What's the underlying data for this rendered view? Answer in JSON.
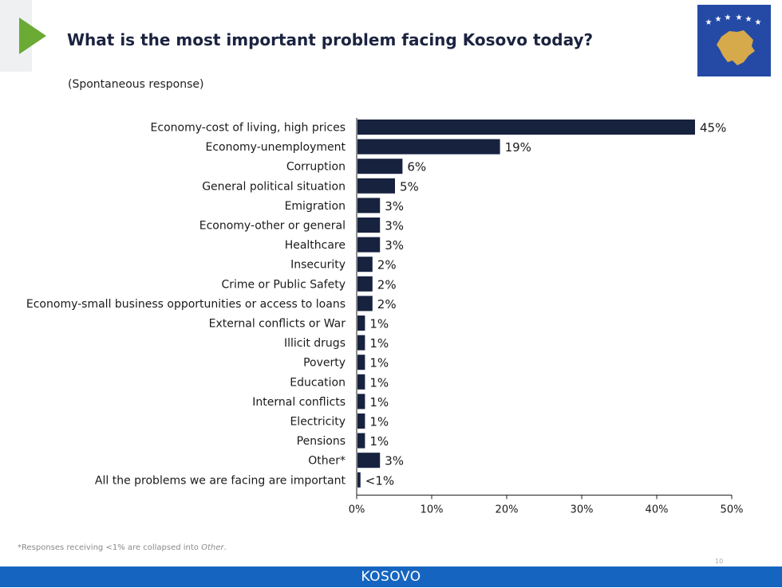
{
  "header": {
    "title": "What is the most important problem facing Kosovo today?",
    "subtitle": "(Spontaneous response)"
  },
  "colors": {
    "bar": "#17223f",
    "accent_green": "#6aaa35",
    "footer": "#1565c0",
    "flag_blue": "#244aa5",
    "flag_gold": "#d6a94b"
  },
  "chart_data": {
    "type": "bar",
    "orientation": "horizontal",
    "title": "What is the most important problem facing Kosovo today?",
    "subtitle": "(Spontaneous response)",
    "categories": [
      "Economy-cost of living, high prices",
      "Economy-unemployment",
      "Corruption",
      "General political situation",
      "Emigration",
      "Economy-other or general",
      "Healthcare",
      "Insecurity",
      "Crime or Public Safety",
      "Economy-small business opportunities or access to loans",
      "External conflicts or War",
      "Illicit drugs",
      "Poverty",
      "Education",
      "Internal conflicts",
      "Electricity",
      "Pensions",
      "Other*",
      "All the problems we are facing are important"
    ],
    "values": [
      45,
      19,
      6,
      5,
      3,
      3,
      3,
      2,
      2,
      2,
      1,
      1,
      1,
      1,
      1,
      1,
      1,
      3,
      0.4
    ],
    "value_labels": [
      "45%",
      "19%",
      "6%",
      "5%",
      "3%",
      "3%",
      "3%",
      "2%",
      "2%",
      "2%",
      "1%",
      "1%",
      "1%",
      "1%",
      "1%",
      "1%",
      "1%",
      "3%",
      "<1%"
    ],
    "xlim": [
      0,
      50
    ],
    "xticks": [
      "0%",
      "10%",
      "20%",
      "30%",
      "40%",
      "50%"
    ],
    "xlabel": "",
    "ylabel": "",
    "grid": false
  },
  "footnote": {
    "prefix": "*Responses receiving <1% are collapsed into ",
    "emph": "Other",
    "suffix": "."
  },
  "page_number": "10",
  "footer": {
    "label": "KOSOVO"
  }
}
